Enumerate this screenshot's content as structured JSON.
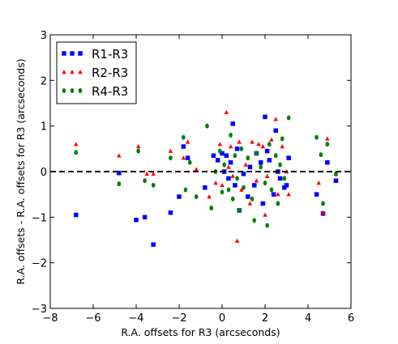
{
  "chart_data": {
    "type": "scatter",
    "title": "",
    "xlabel": "R.A. offsets for R3 (arcseconds)",
    "ylabel": "R.A. offsets - R.A. offsets for R3 (arcseconds)",
    "xlim": [
      -8,
      6
    ],
    "ylim": [
      -3,
      3
    ],
    "xticks": [
      -8,
      -6,
      -4,
      -2,
      0,
      2,
      4,
      6
    ],
    "yticks": [
      -3,
      -2,
      -1,
      0,
      1,
      2,
      3
    ],
    "xtick_labels": [
      "−8",
      "−6",
      "−4",
      "−2",
      "0",
      "2",
      "4",
      "6"
    ],
    "ytick_labels": [
      "−3",
      "−2",
      "−1",
      "0",
      "1",
      "2",
      "3"
    ],
    "grid": false,
    "legend_position": "top-left",
    "reference_line": {
      "y": 0,
      "style": "dashed",
      "color": "#000000"
    },
    "series": [
      {
        "name": "R1-R3",
        "marker": "square",
        "color": "#0000ff",
        "points": [
          [
            -6.8,
            -0.95
          ],
          [
            -4.8,
            -0.03
          ],
          [
            -4.0,
            -1.06
          ],
          [
            -3.6,
            -1.0
          ],
          [
            -3.2,
            -1.6
          ],
          [
            -2.4,
            -0.9
          ],
          [
            -2.0,
            -0.55
          ],
          [
            -1.8,
            0.55
          ],
          [
            -1.6,
            0.3
          ],
          [
            -0.8,
            -0.35
          ],
          [
            -0.4,
            0.35
          ],
          [
            -0.2,
            0.25
          ],
          [
            0.0,
            0.4
          ],
          [
            0.1,
            0.0
          ],
          [
            0.2,
            0.35
          ],
          [
            0.3,
            -0.15
          ],
          [
            0.4,
            0.2
          ],
          [
            0.5,
            1.05
          ],
          [
            0.6,
            -0.3
          ],
          [
            0.7,
            0.5
          ],
          [
            0.8,
            -0.85
          ],
          [
            1.0,
            -0.05
          ],
          [
            1.2,
            -0.55
          ],
          [
            1.3,
            0.1
          ],
          [
            1.5,
            -0.3
          ],
          [
            1.6,
            0.4
          ],
          [
            1.8,
            0.2
          ],
          [
            1.9,
            -0.7
          ],
          [
            2.0,
            1.2
          ],
          [
            2.1,
            0.45
          ],
          [
            2.2,
            0.25
          ],
          [
            2.4,
            -0.5
          ],
          [
            2.5,
            0.9
          ],
          [
            2.6,
            0.0
          ],
          [
            2.7,
            -0.15
          ],
          [
            2.9,
            -0.35
          ],
          [
            3.0,
            -0.3
          ],
          [
            3.1,
            0.3
          ],
          [
            4.4,
            -0.5
          ],
          [
            4.7,
            -0.92
          ],
          [
            4.9,
            0.2
          ],
          [
            5.3,
            -0.2
          ]
        ]
      },
      {
        "name": "R2-R3",
        "marker": "triangle",
        "color": "#ff0000",
        "points": [
          [
            -6.8,
            0.6
          ],
          [
            -4.8,
            0.35
          ],
          [
            -3.9,
            0.55
          ],
          [
            -3.5,
            -0.05
          ],
          [
            -3.2,
            -0.05
          ],
          [
            -2.4,
            0.45
          ],
          [
            -1.8,
            0.3
          ],
          [
            -1.6,
            0.65
          ],
          [
            -1.2,
            0.05
          ],
          [
            -0.6,
            -0.55
          ],
          [
            -0.3,
            -0.25
          ],
          [
            -0.1,
            0.6
          ],
          [
            0.0,
            -0.3
          ],
          [
            0.2,
            1.3
          ],
          [
            0.3,
            0.1
          ],
          [
            0.4,
            0.55
          ],
          [
            0.5,
            -0.1
          ],
          [
            0.7,
            -1.52
          ],
          [
            0.8,
            0.65
          ],
          [
            0.9,
            -0.4
          ],
          [
            1.1,
            0.15
          ],
          [
            1.3,
            -0.7
          ],
          [
            1.4,
            0.65
          ],
          [
            1.6,
            -0.2
          ],
          [
            1.7,
            0.6
          ],
          [
            1.9,
            0.55
          ],
          [
            2.0,
            -0.95
          ],
          [
            2.1,
            -0.1
          ],
          [
            2.3,
            0.7
          ],
          [
            2.5,
            1.15
          ],
          [
            2.6,
            -0.5
          ],
          [
            2.8,
            0.55
          ],
          [
            3.0,
            0.0
          ],
          [
            3.1,
            -0.5
          ],
          [
            4.5,
            -0.25
          ],
          [
            4.7,
            -0.9
          ],
          [
            4.9,
            0.72
          ],
          [
            5.3,
            -0.05
          ]
        ]
      },
      {
        "name": "R4-R3",
        "marker": "circle",
        "color": "#008000",
        "points": [
          [
            -6.8,
            0.42
          ],
          [
            -4.8,
            -0.27
          ],
          [
            -3.9,
            0.45
          ],
          [
            -3.6,
            -0.2
          ],
          [
            -3.2,
            -0.3
          ],
          [
            -2.4,
            0.3
          ],
          [
            -1.8,
            0.75
          ],
          [
            -1.7,
            -0.4
          ],
          [
            -1.5,
            0.2
          ],
          [
            -1.2,
            -0.55
          ],
          [
            -0.7,
            1.0
          ],
          [
            -0.5,
            -0.8
          ],
          [
            -0.3,
            0.0
          ],
          [
            -0.1,
            0.45
          ],
          [
            0.0,
            -0.45
          ],
          [
            0.1,
            0.15
          ],
          [
            0.3,
            -0.4
          ],
          [
            0.4,
            0.8
          ],
          [
            0.5,
            -0.6
          ],
          [
            0.6,
            0.35
          ],
          [
            0.7,
            -0.15
          ],
          [
            0.8,
            -0.85
          ],
          [
            0.9,
            0.5
          ],
          [
            1.0,
            -0.35
          ],
          [
            1.2,
            0.3
          ],
          [
            1.4,
            -0.6
          ],
          [
            1.5,
            -1.07
          ],
          [
            1.6,
            0.4
          ],
          [
            1.8,
            0.1
          ],
          [
            2.0,
            -0.25
          ],
          [
            2.1,
            -1.18
          ],
          [
            2.2,
            0.6
          ],
          [
            2.3,
            -0.4
          ],
          [
            2.5,
            0.35
          ],
          [
            2.6,
            -0.7
          ],
          [
            2.7,
            0.15
          ],
          [
            2.8,
            0.72
          ],
          [
            2.9,
            -0.15
          ],
          [
            3.1,
            1.18
          ],
          [
            4.4,
            0.75
          ],
          [
            4.6,
            0.37
          ],
          [
            4.7,
            -0.7
          ],
          [
            4.9,
            0.6
          ],
          [
            5.3,
            -0.05
          ]
        ]
      }
    ]
  }
}
